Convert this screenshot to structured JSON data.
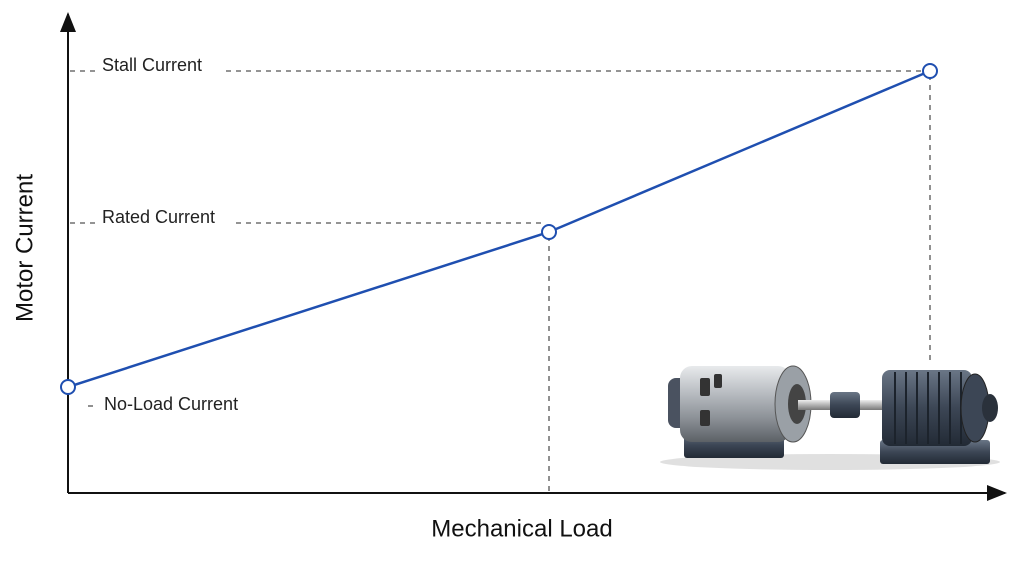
{
  "axes": {
    "x_label": "Mechanical Load",
    "y_label": "Motor Current"
  },
  "points": [
    {
      "label": "No-Load Current"
    },
    {
      "label": "Rated Current"
    },
    {
      "label": "Stall Current"
    }
  ]
}
